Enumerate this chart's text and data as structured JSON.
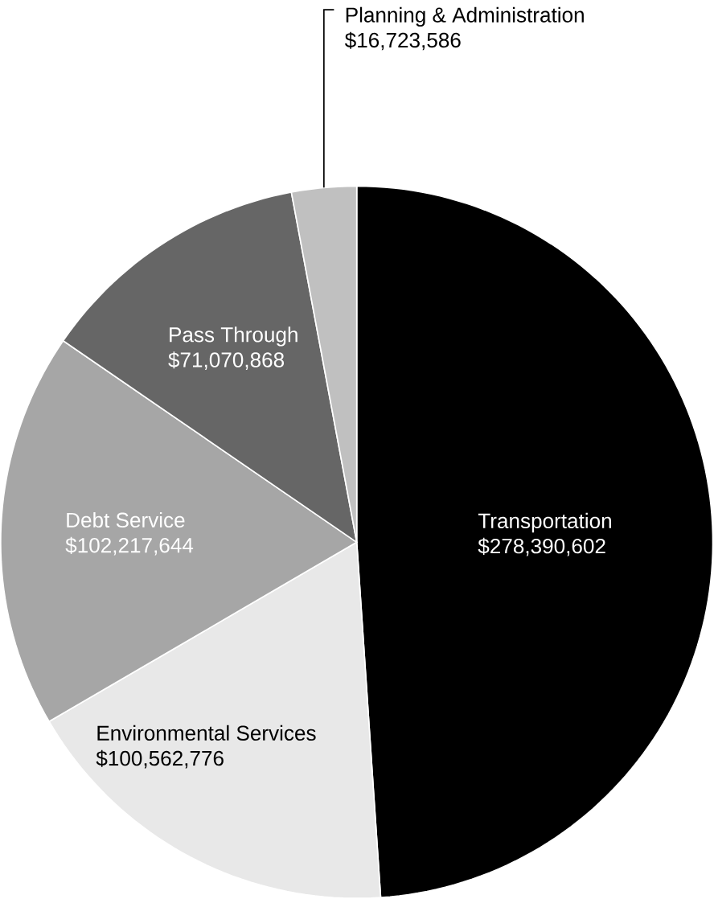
{
  "chart_data": {
    "type": "pie",
    "categories": [
      "Transportation",
      "Environmental Services",
      "Debt Service",
      "Pass Through",
      "Planning & Administration"
    ],
    "values": [
      278390602,
      100562776,
      102217644,
      71070868,
      16723586
    ],
    "value_labels": [
      "$278,390,602",
      "$100,562,776",
      "$102,217,644",
      "$71,070,868",
      "$16,723,586"
    ],
    "colors": [
      "#000000",
      "#e8e8e8",
      "#a6a6a6",
      "#666666",
      "#c0c0c0"
    ]
  }
}
